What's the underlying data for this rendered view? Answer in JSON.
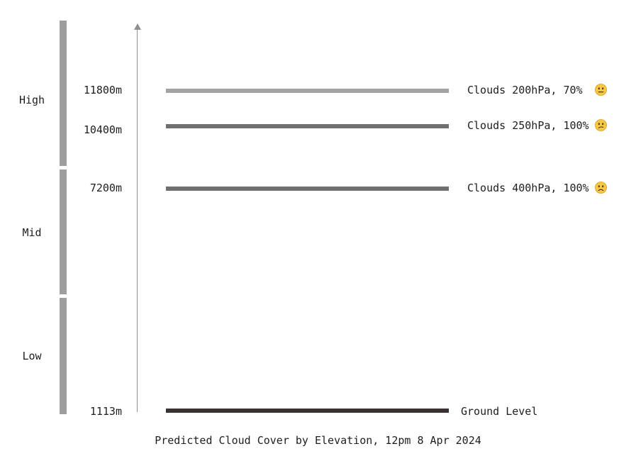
{
  "bands": [
    {
      "label": "High"
    },
    {
      "label": "Mid"
    },
    {
      "label": "Low"
    }
  ],
  "layers": [
    {
      "elevation": "11800m",
      "label": "Clouds 200hPa, 70%",
      "color": "#a3a3a3",
      "mood": "neutral-face-icon"
    },
    {
      "elevation": "10400m",
      "label": "Clouds 250hPa, 100%",
      "color": "#6f6f6f",
      "mood": "confused-face-icon"
    },
    {
      "elevation": "7200m",
      "label": "Clouds 400hPa, 100%",
      "color": "#6f6f6f",
      "mood": "frowning-face-icon"
    },
    {
      "elevation": "1113m",
      "label": "Ground Level",
      "color": "#3a3333"
    }
  ],
  "caption": "Predicted Cloud Cover by Elevation, 12pm 8 Apr 2024"
}
